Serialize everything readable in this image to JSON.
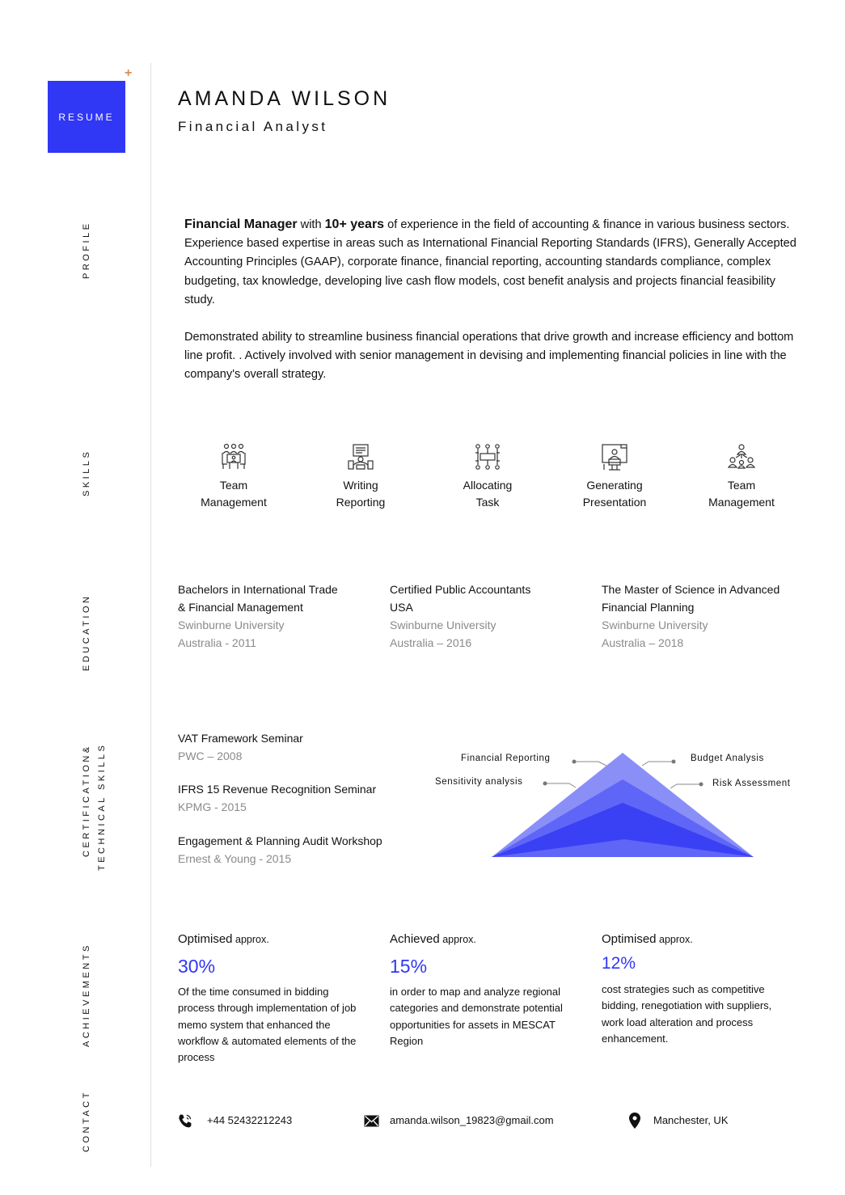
{
  "header": {
    "badge": "RESUME",
    "name": "AMANDA WILSON",
    "title": "Financial Analyst"
  },
  "section_labels": {
    "profile": "PROFILE",
    "skills": "SKILLS",
    "education": "EDUCATION",
    "cert_line1": "CERTIFICATION&",
    "cert_line2": "TECHNICAL SKILLS",
    "achievements": "ACHIEVEMENTS",
    "contact": "CONTACT"
  },
  "profile": {
    "role_bold": "Financial Manager",
    "with": " with ",
    "years_bold": "10+ years",
    "p1_rest": " of experience in the field of accounting & finance in various business sectors. Experience based expertise in areas such as International Financial Reporting Standards (IFRS), Generally Accepted Accounting Principles (GAAP), corporate finance, financial reporting, accounting standards compliance, complex budgeting, tax knowledge, developing live cash flow models, cost benefit analysis and projects financial feasibility study.",
    "p2": "Demonstrated ability to streamline business financial operations that drive growth and increase efficiency and bottom line profit. . Actively involved with senior management in devising and implementing financial policies in line with the company's overall strategy."
  },
  "skills": [
    {
      "line1": "Team",
      "line2": "Management",
      "icon": "team-meeting-icon"
    },
    {
      "line1": "Writing",
      "line2": "Reporting",
      "icon": "report-writing-icon"
    },
    {
      "line1": "Allocating",
      "line2": "Task",
      "icon": "task-network-icon"
    },
    {
      "line1": "Generating",
      "line2": "Presentation",
      "icon": "presentation-icon"
    },
    {
      "line1": "Team",
      "line2": "Management",
      "icon": "team-hierarchy-icon"
    }
  ],
  "education": [
    {
      "degree_l1": "Bachelors in International Trade",
      "degree_l2": "& Financial Management",
      "school": "Swinburne University",
      "place_year": "Australia - 2011"
    },
    {
      "degree_l1": "Certified Public Accountants",
      "degree_l2": "USA",
      "school": "Swinburne University",
      "place_year": "Australia – 2016"
    },
    {
      "degree_l1": "The Master of Science in Advanced",
      "degree_l2": "Financial Planning",
      "school": "Swinburne University",
      "place_year": "Australia – 2018"
    }
  ],
  "certifications": [
    {
      "name": "VAT Framework Seminar",
      "org": "PWC – 2008"
    },
    {
      "name": "IFRS 15 Revenue Recognition Seminar",
      "org": "KPMG - 2015"
    },
    {
      "name": "Engagement & Planning Audit Workshop",
      "org": "Ernest & Young - 2015"
    }
  ],
  "technical_skills": {
    "labels": [
      "Financial Reporting",
      "Sensitivity analysis",
      "Budget Analysis",
      "Risk Assessment"
    ],
    "colors": [
      "#8a8ff8",
      "#5f65f6",
      "#3a40f4"
    ]
  },
  "achievements": [
    {
      "verb": "Optimised",
      "approx": " approx.",
      "pct": "30%",
      "desc": "Of the time consumed in bidding process through implementation of job memo system that enhanced the workflow & automated elements of the process"
    },
    {
      "verb": "Achieved",
      "approx": " approx.",
      "pct": "15%",
      "desc": "in order to map and analyze regional categories and demonstrate potential opportunities for assets in MESCAT Region"
    },
    {
      "verb": "Optimised",
      "approx": " approx.",
      "pct": "12%",
      "desc": "cost strategies such as competitive bidding, renegotiation with suppliers, work load alteration and process enhancement."
    }
  ],
  "contact": {
    "phone": "+44 52432212243",
    "email": "amanda.wilson_19823@gmail.com",
    "location": "Manchester, UK"
  },
  "colors": {
    "accent": "#3037f5",
    "plus": "#e08a57"
  }
}
